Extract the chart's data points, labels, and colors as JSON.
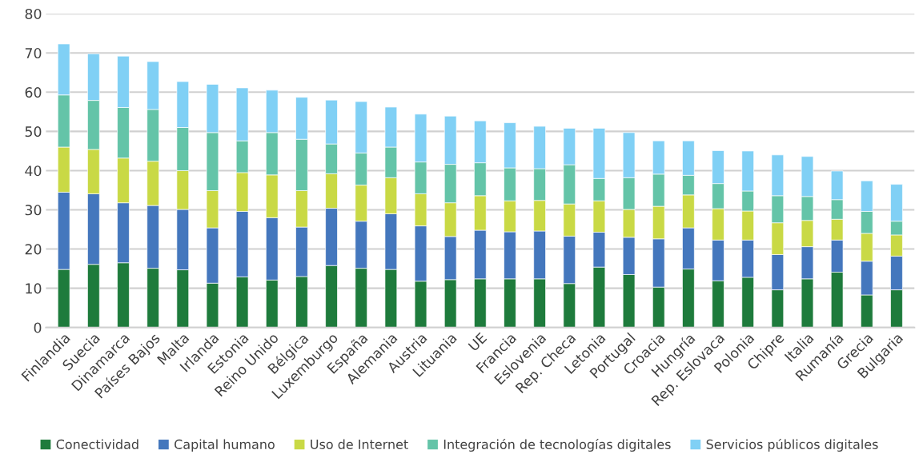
{
  "chart_data": {
    "type": "bar",
    "stacked": true,
    "categories": [
      "Finlandia",
      "Suecia",
      "Dinamarca",
      "Países Bajos",
      "Malta",
      "Irlanda",
      "Estonia",
      "Reino Unido",
      "Bélgica",
      "Luxemburgo",
      "España",
      "Alemania",
      "Austria",
      "Lituania",
      "UE",
      "Francia",
      "Eslovenia",
      "Rep. Checa",
      "Letonia",
      "Portugal",
      "Croacia",
      "Hungría",
      "Rep. Eslovaca",
      "Polonia",
      "Chipre",
      "Italia",
      "Rumanía",
      "Grecia",
      "Bulgaria"
    ],
    "series": [
      {
        "name": "Conectividad",
        "color": "#1e7b3c",
        "values": [
          14.8,
          16.1,
          16.5,
          15.1,
          14.7,
          11.3,
          12.9,
          12.1,
          13.0,
          15.8,
          15.1,
          14.8,
          11.8,
          12.2,
          12.4,
          12.4,
          12.4,
          11.2,
          15.4,
          13.5,
          10.3,
          14.9,
          11.9,
          12.8,
          9.6,
          12.4,
          14.1,
          8.3,
          9.6
        ]
      },
      {
        "name": "Capital humano",
        "color": "#4477bd",
        "values": [
          19.7,
          18.0,
          15.3,
          16.0,
          15.4,
          14.1,
          16.7,
          15.9,
          12.6,
          14.6,
          12.0,
          14.2,
          14.1,
          11.0,
          12.4,
          12.0,
          12.2,
          12.1,
          8.9,
          9.5,
          12.3,
          10.5,
          10.4,
          9.5,
          9.0,
          8.2,
          8.2,
          8.6,
          8.6
        ]
      },
      {
        "name": "Uso de Internet",
        "color": "#c9d945",
        "values": [
          11.5,
          11.3,
          11.4,
          11.3,
          9.9,
          9.5,
          9.9,
          10.9,
          9.3,
          8.8,
          9.2,
          9.2,
          8.2,
          8.6,
          8.8,
          7.9,
          7.8,
          8.2,
          8.0,
          7.1,
          8.3,
          8.4,
          8.0,
          7.4,
          8.1,
          6.7,
          5.3,
          7.1,
          5.4
        ]
      },
      {
        "name": "Integración de tecnologías digitales",
        "color": "#64c4a8",
        "values": [
          13.3,
          12.5,
          12.9,
          13.2,
          11.0,
          14.8,
          8.1,
          10.8,
          13.1,
          7.6,
          8.2,
          7.8,
          8.1,
          9.8,
          8.4,
          8.4,
          8.1,
          10.0,
          5.7,
          8.1,
          8.2,
          5.0,
          6.4,
          5.1,
          6.9,
          6.1,
          5.0,
          5.6,
          3.5
        ]
      },
      {
        "name": "Servicios públicos digitales",
        "color": "#80d0f5",
        "values": [
          13.0,
          11.9,
          13.1,
          12.2,
          11.7,
          12.3,
          13.5,
          10.8,
          10.7,
          11.2,
          13.1,
          10.2,
          12.2,
          12.3,
          10.7,
          11.5,
          10.8,
          9.3,
          12.8,
          11.5,
          8.5,
          8.8,
          8.4,
          10.2,
          10.4,
          10.2,
          7.3,
          7.8,
          9.4
        ]
      }
    ],
    "ylim": [
      0,
      80
    ],
    "yticks": [
      0,
      10,
      20,
      30,
      40,
      50,
      60,
      70,
      80
    ],
    "grid": "y",
    "legend": "bottom"
  }
}
